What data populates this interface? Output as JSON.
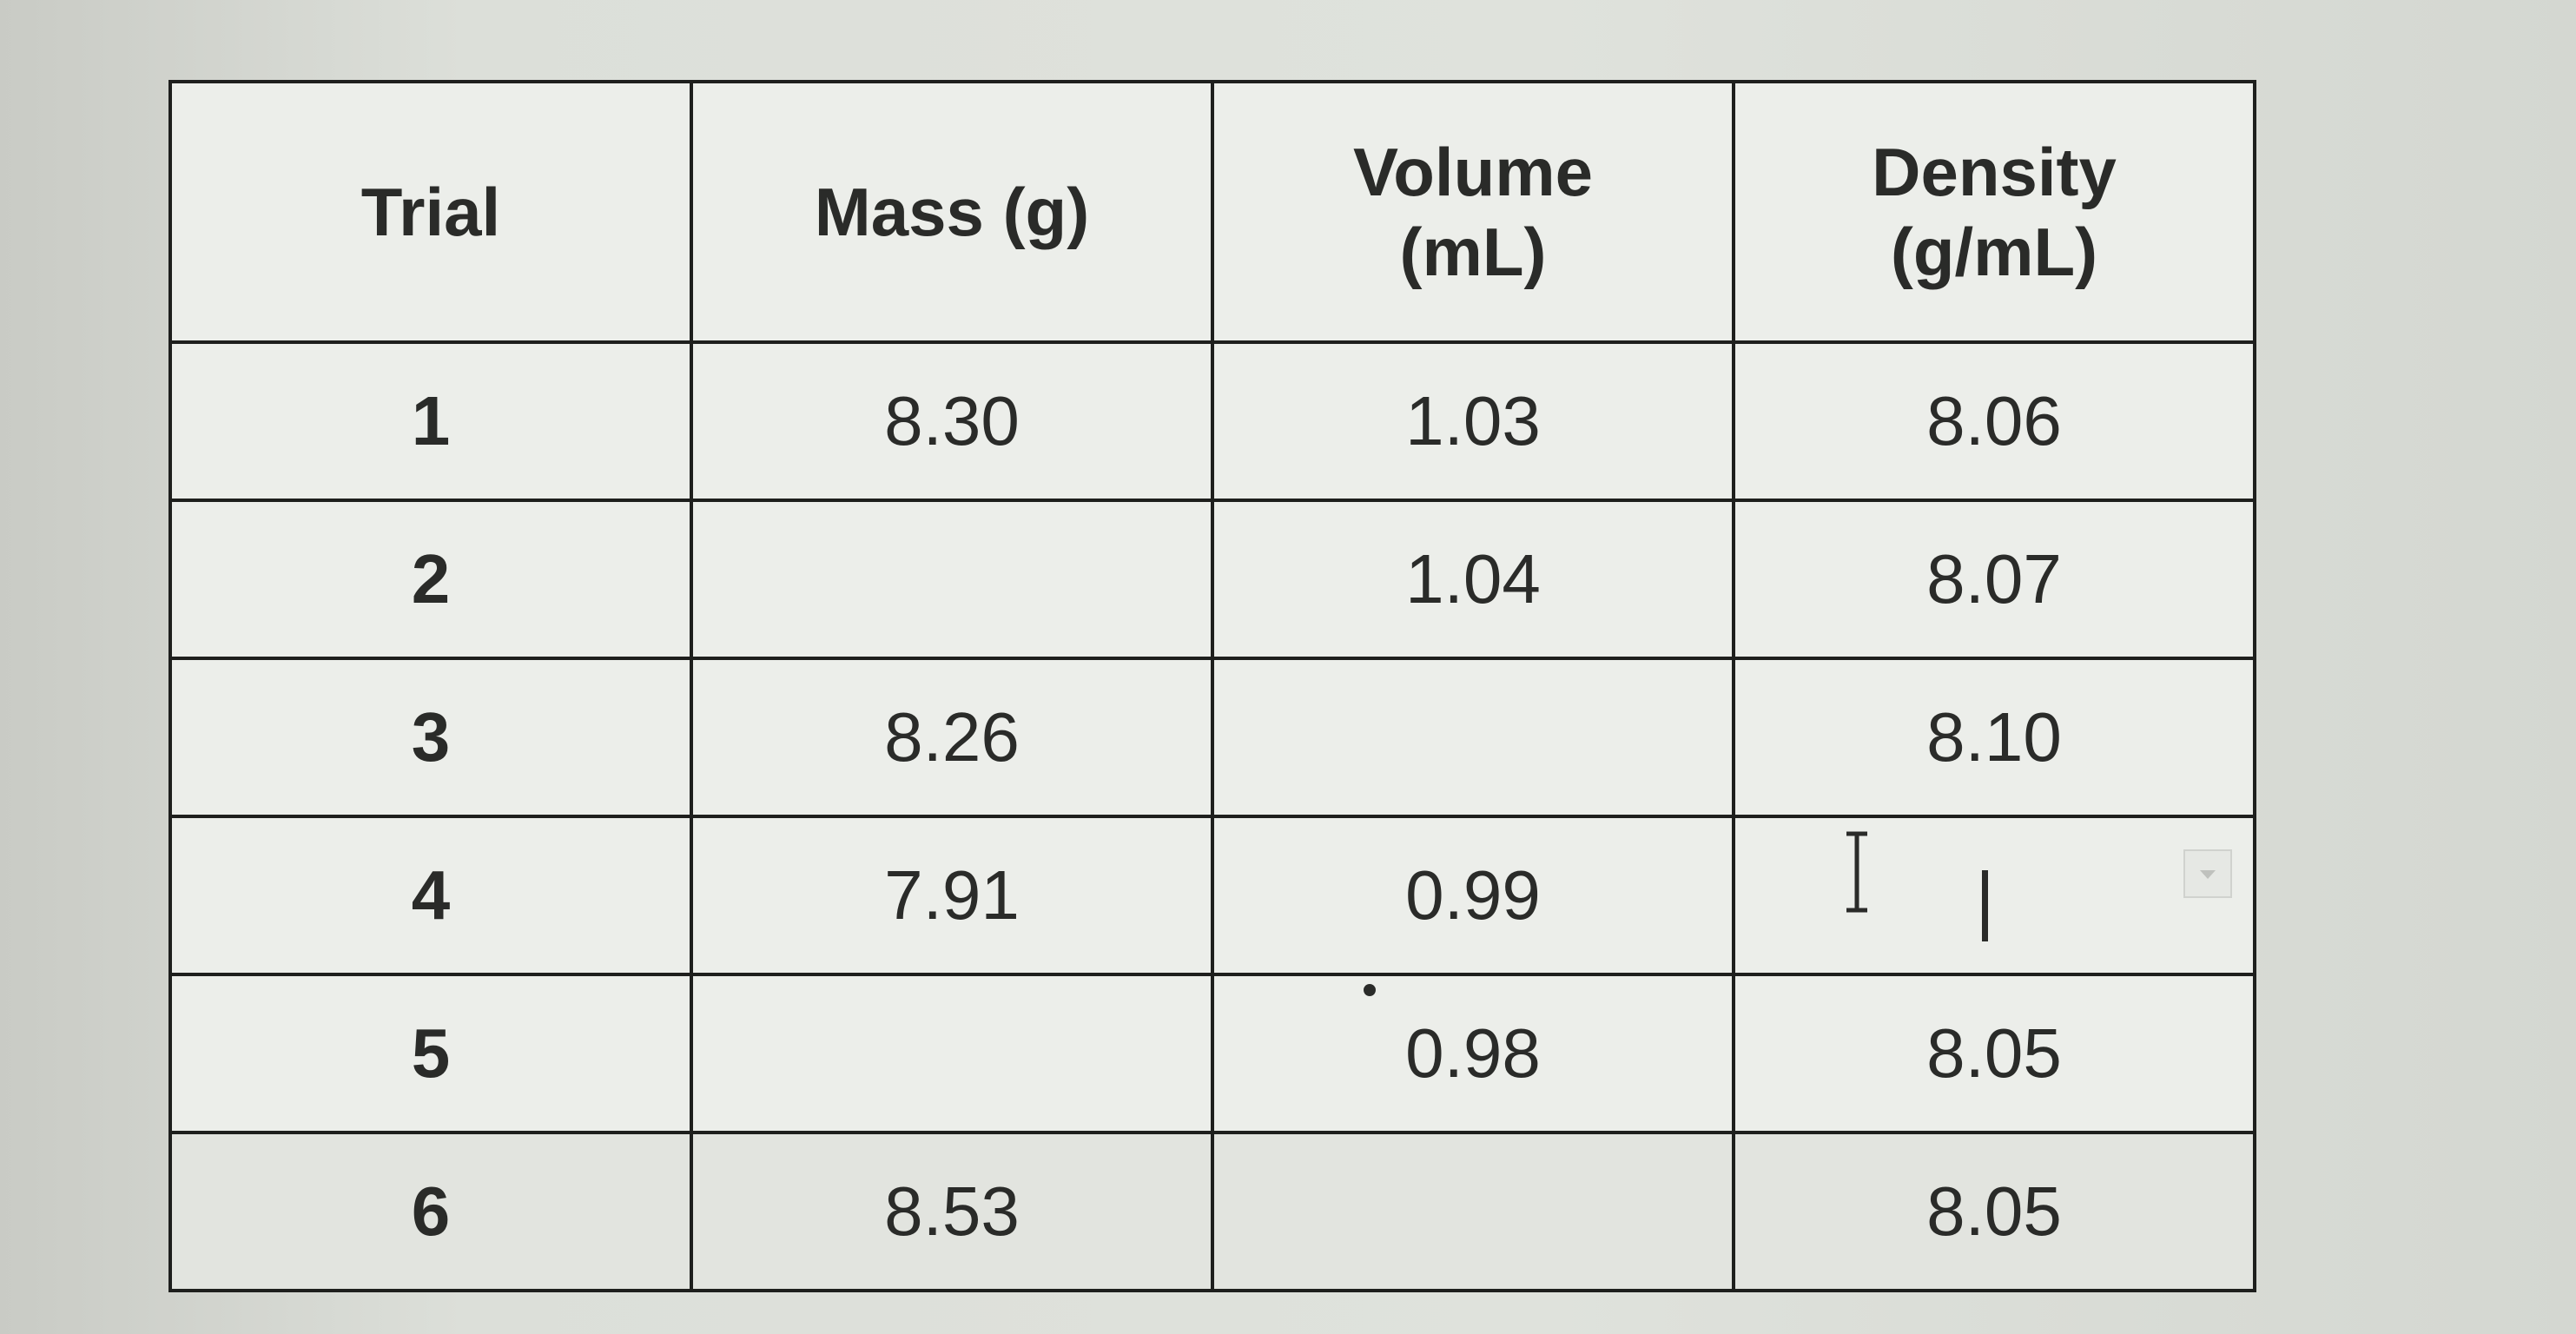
{
  "table": {
    "headers": [
      {
        "line1": "Trial",
        "line2": ""
      },
      {
        "line1": "Mass (g)",
        "line2": ""
      },
      {
        "line1": "Volume",
        "line2": "(mL)"
      },
      {
        "line1": "Density",
        "line2": "(g/mL)"
      }
    ],
    "rows": [
      {
        "trial": "1",
        "mass": "8.30",
        "volume": "1.03",
        "density": "8.06"
      },
      {
        "trial": "2",
        "mass": "",
        "volume": "1.04",
        "density": "8.07"
      },
      {
        "trial": "3",
        "mass": "8.26",
        "volume": "",
        "density": "8.10"
      },
      {
        "trial": "4",
        "mass": "7.91",
        "volume": "0.99",
        "density": ""
      },
      {
        "trial": "5",
        "mass": "",
        "volume": "0.98",
        "density": "8.05"
      },
      {
        "trial": "6",
        "mass": "8.53",
        "volume": "",
        "density": "8.05"
      }
    ]
  },
  "active_cell": {
    "row": 4,
    "column": "density"
  },
  "colors": {
    "background": "#d7d9d4",
    "cell_background": "#eceeea",
    "border": "#1e1f1d",
    "text": "#2a2b29"
  },
  "icons": [
    "text-cursor-icon",
    "chevron-down-icon"
  ]
}
